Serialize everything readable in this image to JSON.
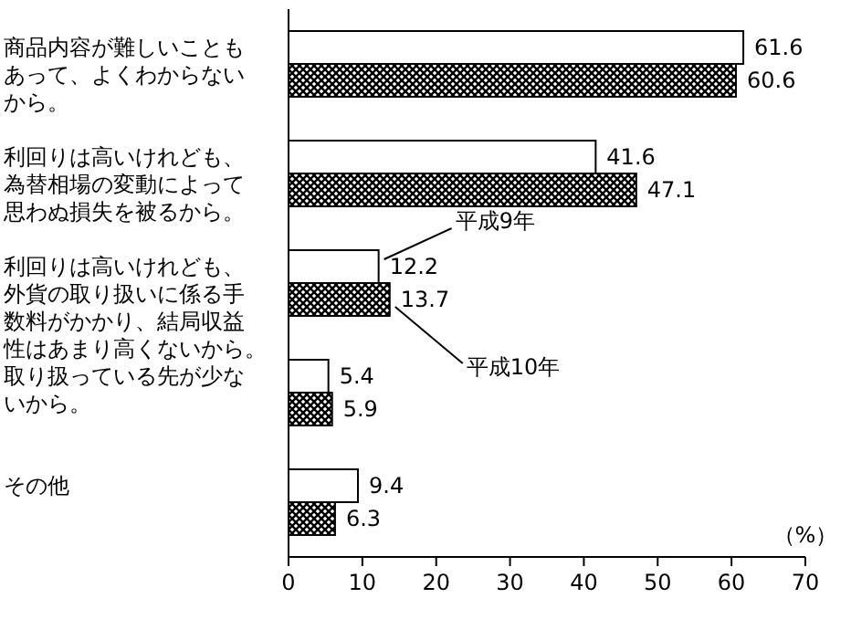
{
  "chart_data": {
    "type": "bar",
    "orientation": "horizontal",
    "categories": [
      "商品内容が難しいこともあって、よくわからないから。",
      "利回りは高いけれども、為替相場の変動によって思わぬ損失を被るから。",
      "利回りは高いけれども、外貨の取り扱いに係る手数料がかかり、結局収益性はあまり高くないから。",
      "取り扱っている先が少ないから。",
      "その他"
    ],
    "series": [
      {
        "name": "平成9年",
        "color": "#ffffff",
        "values": [
          61.6,
          41.6,
          12.2,
          5.4,
          9.4
        ]
      },
      {
        "name": "平成10年",
        "color": "#000000",
        "values": [
          60.6,
          47.1,
          13.7,
          5.9,
          6.3
        ]
      }
    ],
    "xlim": [
      0,
      70
    ],
    "xticks": [
      0,
      10,
      20,
      30,
      40,
      50,
      60,
      70
    ],
    "xlabel": "（%）",
    "data_labels": true,
    "grid": false
  }
}
